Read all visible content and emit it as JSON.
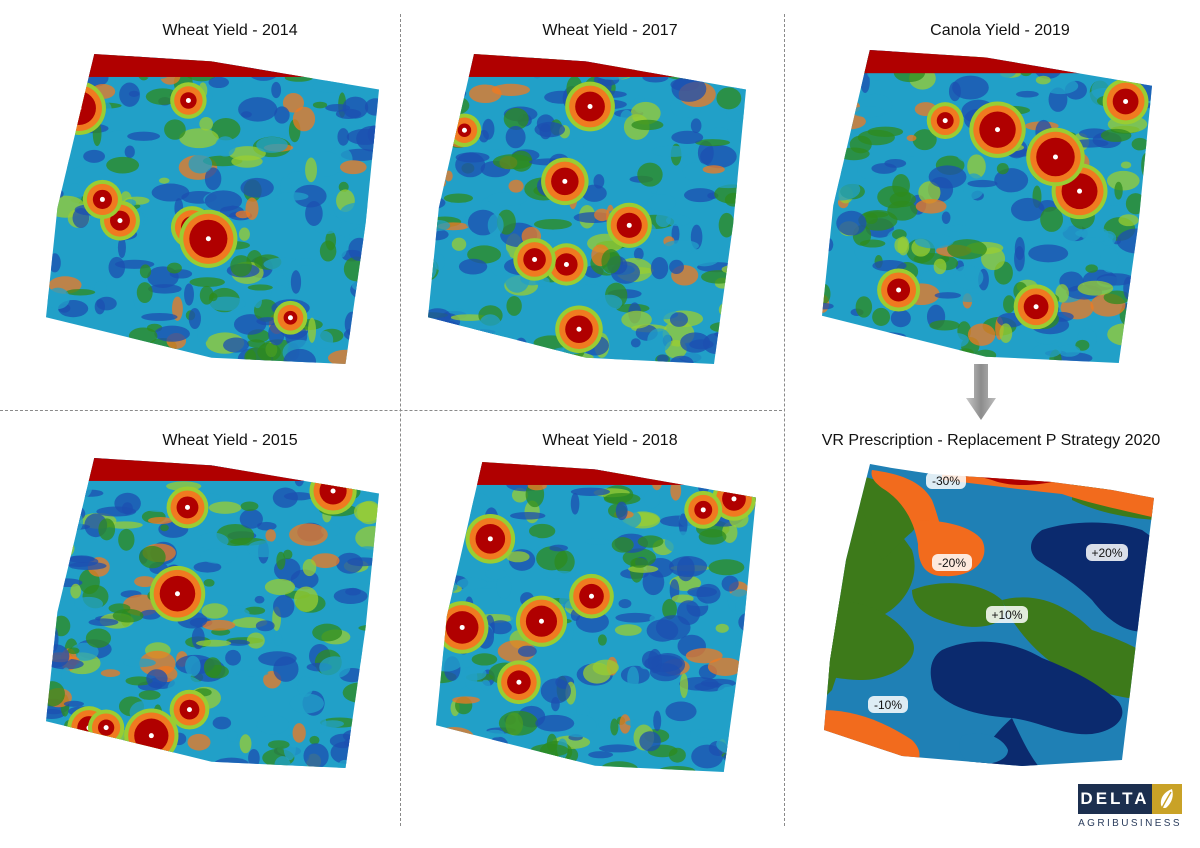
{
  "panels": [
    {
      "id": "wheat-2014",
      "title": "Wheat Yield - 2014",
      "type": "yield"
    },
    {
      "id": "wheat-2017",
      "title": "Wheat Yield - 2017",
      "type": "yield"
    },
    {
      "id": "canola-2019",
      "title": "Canola Yield - 2019",
      "type": "yield"
    },
    {
      "id": "wheat-2015",
      "title": "Wheat Yield - 2015",
      "type": "yield"
    },
    {
      "id": "wheat-2018",
      "title": "Wheat Yield - 2018",
      "type": "yield"
    },
    {
      "id": "vr-2020",
      "title": "VR Prescription - Replacement P Strategy 2020",
      "type": "prescription"
    }
  ],
  "prescription_zones": [
    {
      "label": "-30%",
      "color": "#f26b1d"
    },
    {
      "label": "-20%",
      "color": "#f26b1d"
    },
    {
      "label": "+20%",
      "color": "#0b2a6e"
    },
    {
      "label": "+10%",
      "color": "#1f80b5"
    },
    {
      "label": "-10%",
      "color": "#f26b1d"
    }
  ],
  "colors": {
    "high_yield": "#b00000",
    "mid_high": "#f07a20",
    "mid": "#2e8b1e",
    "mid_low": "#21a0c8",
    "low": "#1c4fb0",
    "prescription_green": "#3d7a1a",
    "prescription_teal": "#1f80b5",
    "prescription_navy": "#0b2a6e",
    "prescription_orange": "#f26b1d",
    "prescription_red": "#b00000"
  },
  "logo": {
    "word": "DELTA",
    "sub": "AGRIBUSINESS"
  }
}
